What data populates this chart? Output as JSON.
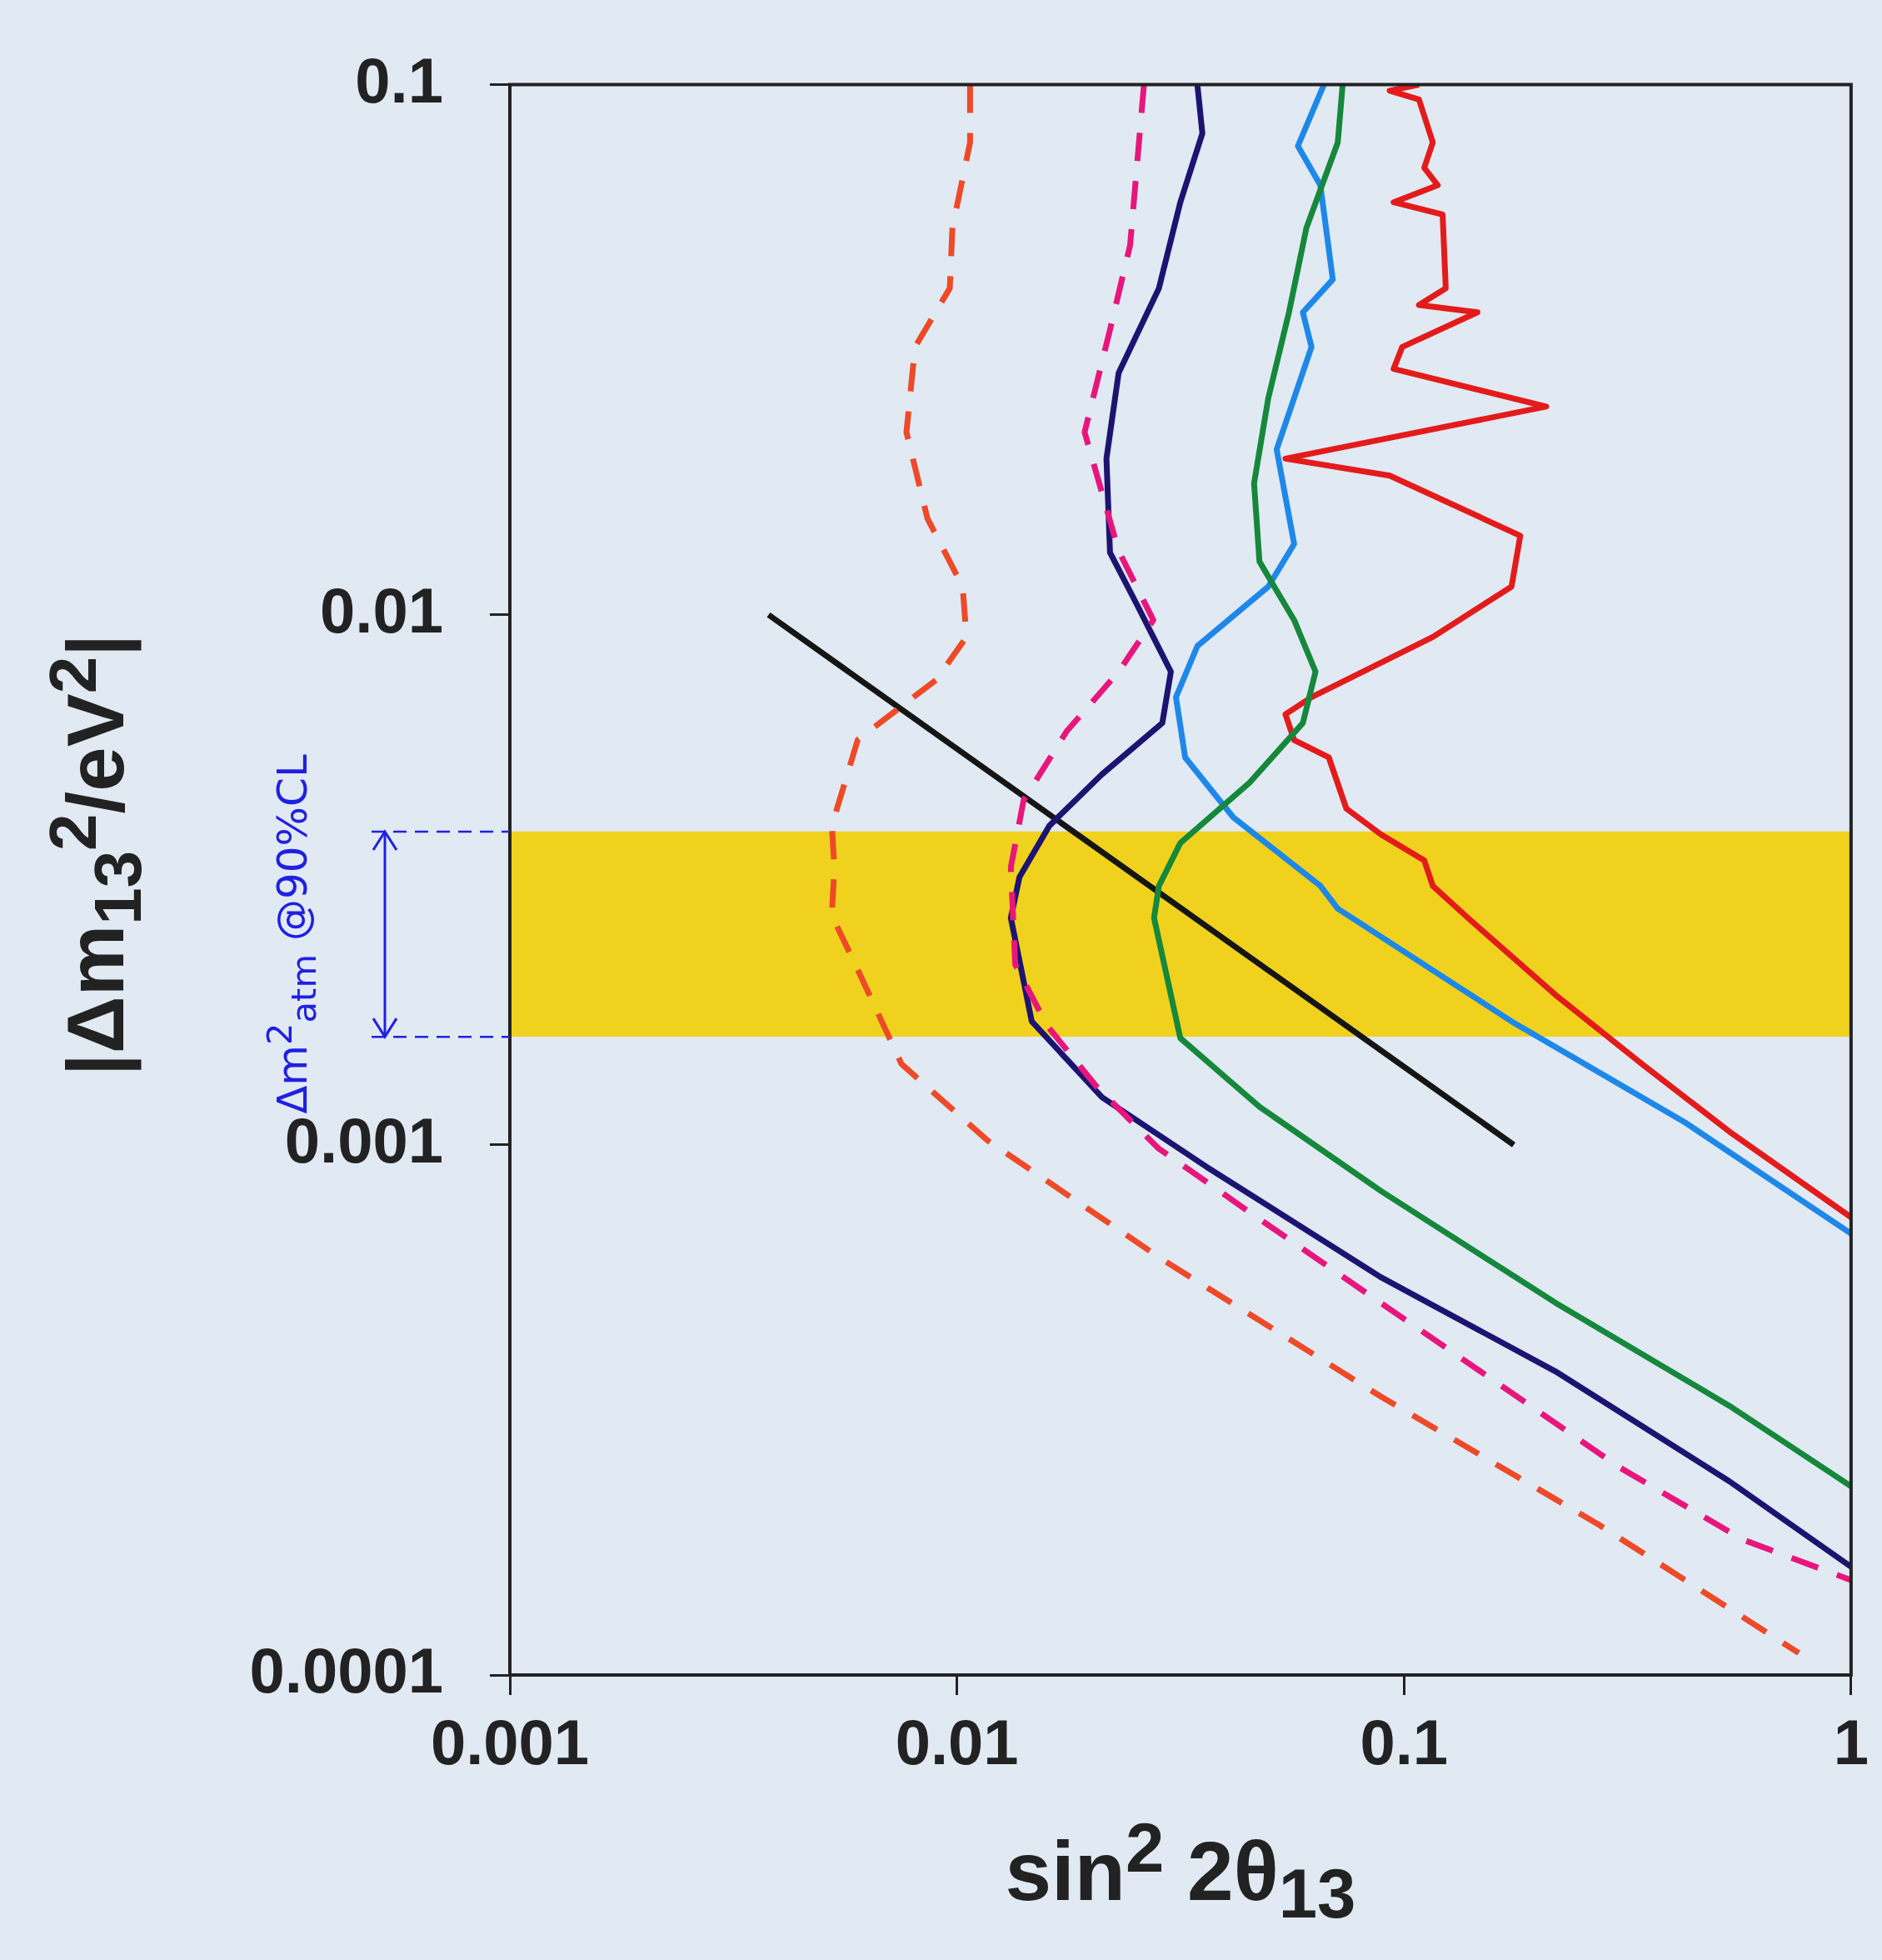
{
  "chart_data": {
    "type": "line",
    "xlabel": "sin$^{2}$ 2θ$_{13}$",
    "ylabel": "|Δm$_{13}$$^{2}$/eV$^{2}$|",
    "log": "xy",
    "marker": "none",
    "xlim": [
      0.001,
      1
    ],
    "ylim": [
      0.0001,
      0.1
    ],
    "xticks": [
      0.001,
      0.01,
      0.1,
      1
    ],
    "yticks": [
      0.0001,
      0.001,
      0.01,
      0.1
    ],
    "bands": [
      {
        "axis": "y",
        "from": 0.0016,
        "to": 0.0039,
        "color": "#f0d21e",
        "label": "Δm$^{2}$$_{atm}$ @90%CL"
      }
    ],
    "series": [
      {
        "color": "#ee4a28",
        "line_style": "dashed",
        "x": [
          0.0107,
          0.0107,
          0.00977,
          0.00964,
          0.00806,
          0.00771,
          0.00859,
          0.0103,
          0.0105,
          0.00899,
          0.006,
          0.00525,
          0.00532,
          0.00525,
          0.006,
          0.00752,
          0.0117,
          0.0288,
          0.0889,
          0.273,
          0.764
        ],
        "values": [
          0.1,
          0.0778,
          0.0537,
          0.0413,
          0.032,
          0.0221,
          0.0152,
          0.0113,
          0.00908,
          0.00754,
          0.00581,
          0.004,
          0.00334,
          0.00271,
          0.00214,
          0.00142,
          0.00102,
          0.000608,
          0.000335,
          0.000192,
          0.00011
        ]
      },
      {
        "color": "#e8167c",
        "line_style": "dashed",
        "x": [
          0.0262,
          0.0244,
          0.022,
          0.0193,
          0.023,
          0.0275,
          0.023,
          0.0176,
          0.0141,
          0.0132,
          0.0135,
          0.0159,
          0.0205,
          0.0282,
          0.0443,
          0.0839,
          0.159,
          0.302,
          0.573,
          1
        ],
        "values": [
          0.1,
          0.0498,
          0.0345,
          0.0221,
          0.0132,
          0.00977,
          0.00781,
          0.00603,
          0.00447,
          0.00334,
          0.00219,
          0.00168,
          0.00129,
          0.000986,
          0.000755,
          0.00052,
          0.000359,
          0.000247,
          0.00018,
          0.000151
        ]
      },
      {
        "color": "#1c1470",
        "line_style": "solid",
        "x": [
          0.0345,
          0.0354,
          0.0316,
          0.0283,
          0.023,
          0.0216,
          0.022,
          0.0252,
          0.0301,
          0.0288,
          0.0211,
          0.0161,
          0.0138,
          0.0132,
          0.0147,
          0.0211,
          0.0361,
          0.0884,
          0.218,
          0.534,
          1
        ],
        "values": [
          0.1,
          0.0809,
          0.06,
          0.0413,
          0.0286,
          0.0197,
          0.0131,
          0.0105,
          0.00781,
          0.00625,
          0.005,
          0.004,
          0.0032,
          0.00268,
          0.00171,
          0.00123,
          0.00091,
          0.000564,
          0.000374,
          0.000232,
          0.00016
        ]
      },
      {
        "color": "#15883c",
        "line_style": "solid",
        "x": [
          0.0729,
          0.0711,
          0.0605,
          0.0553,
          0.0497,
          0.0462,
          0.0475,
          0.0568,
          0.0634,
          0.0594,
          0.0451,
          0.0316,
          0.0283,
          0.0276,
          0.0316,
          0.0475,
          0.0889,
          0.218,
          0.534,
          1
        ],
        "values": [
          0.1,
          0.0778,
          0.0537,
          0.0372,
          0.0256,
          0.0177,
          0.0126,
          0.00977,
          0.00781,
          0.00625,
          0.00482,
          0.00371,
          0.00308,
          0.00268,
          0.00159,
          0.00118,
          0.000818,
          0.000504,
          0.000322,
          0.000227
        ]
      },
      {
        "color": "#1e88e8",
        "line_style": "solid",
        "x": [
          0.0662,
          0.0579,
          0.065,
          0.0693,
          0.0594,
          0.0621,
          0.0519,
          0.0568,
          0.0497,
          0.0345,
          0.0309,
          0.0324,
          0.0415,
          0.065,
          0.0711,
          0.174,
          0.427,
          1
        ],
        "values": [
          0.1,
          0.0766,
          0.0646,
          0.0429,
          0.0372,
          0.032,
          0.0205,
          0.0136,
          0.0113,
          0.00873,
          0.00699,
          0.00538,
          0.00415,
          0.00308,
          0.00279,
          0.00171,
          0.0011,
          0.00068
        ]
      },
      {
        "color": "#e41b1b",
        "line_style": "solid",
        "x": [
          0.108,
          0.0929,
          0.108,
          0.116,
          0.111,
          0.119,
          0.0948,
          0.122,
          0.124,
          0.108,
          0.146,
          0.0991,
          0.0948,
          0.208,
          0.0543,
          0.0929,
          0.182,
          0.174,
          0.116,
          0.0621,
          0.0543,
          0.0568,
          0.0679,
          0.0743,
          0.0889,
          0.111,
          0.116,
          0.139,
          0.218,
          0.341,
          0.534,
          1
        ],
        "values": [
          0.1,
          0.0974,
          0.0938,
          0.0778,
          0.0697,
          0.0646,
          0.06,
          0.0569,
          0.0413,
          0.0384,
          0.0372,
          0.032,
          0.0291,
          0.0247,
          0.0197,
          0.0183,
          0.0141,
          0.0113,
          0.00908,
          0.00699,
          0.00649,
          0.0058,
          0.00538,
          0.00431,
          0.00385,
          0.00344,
          0.00308,
          0.00268,
          0.00192,
          0.00142,
          0.00106,
          0.00073
        ]
      },
      {
        "color": "#151515",
        "line_style": "solid",
        "x": [
          0.00379,
          0.176
        ],
        "values": [
          0.01,
          0.001
        ]
      }
    ]
  }
}
